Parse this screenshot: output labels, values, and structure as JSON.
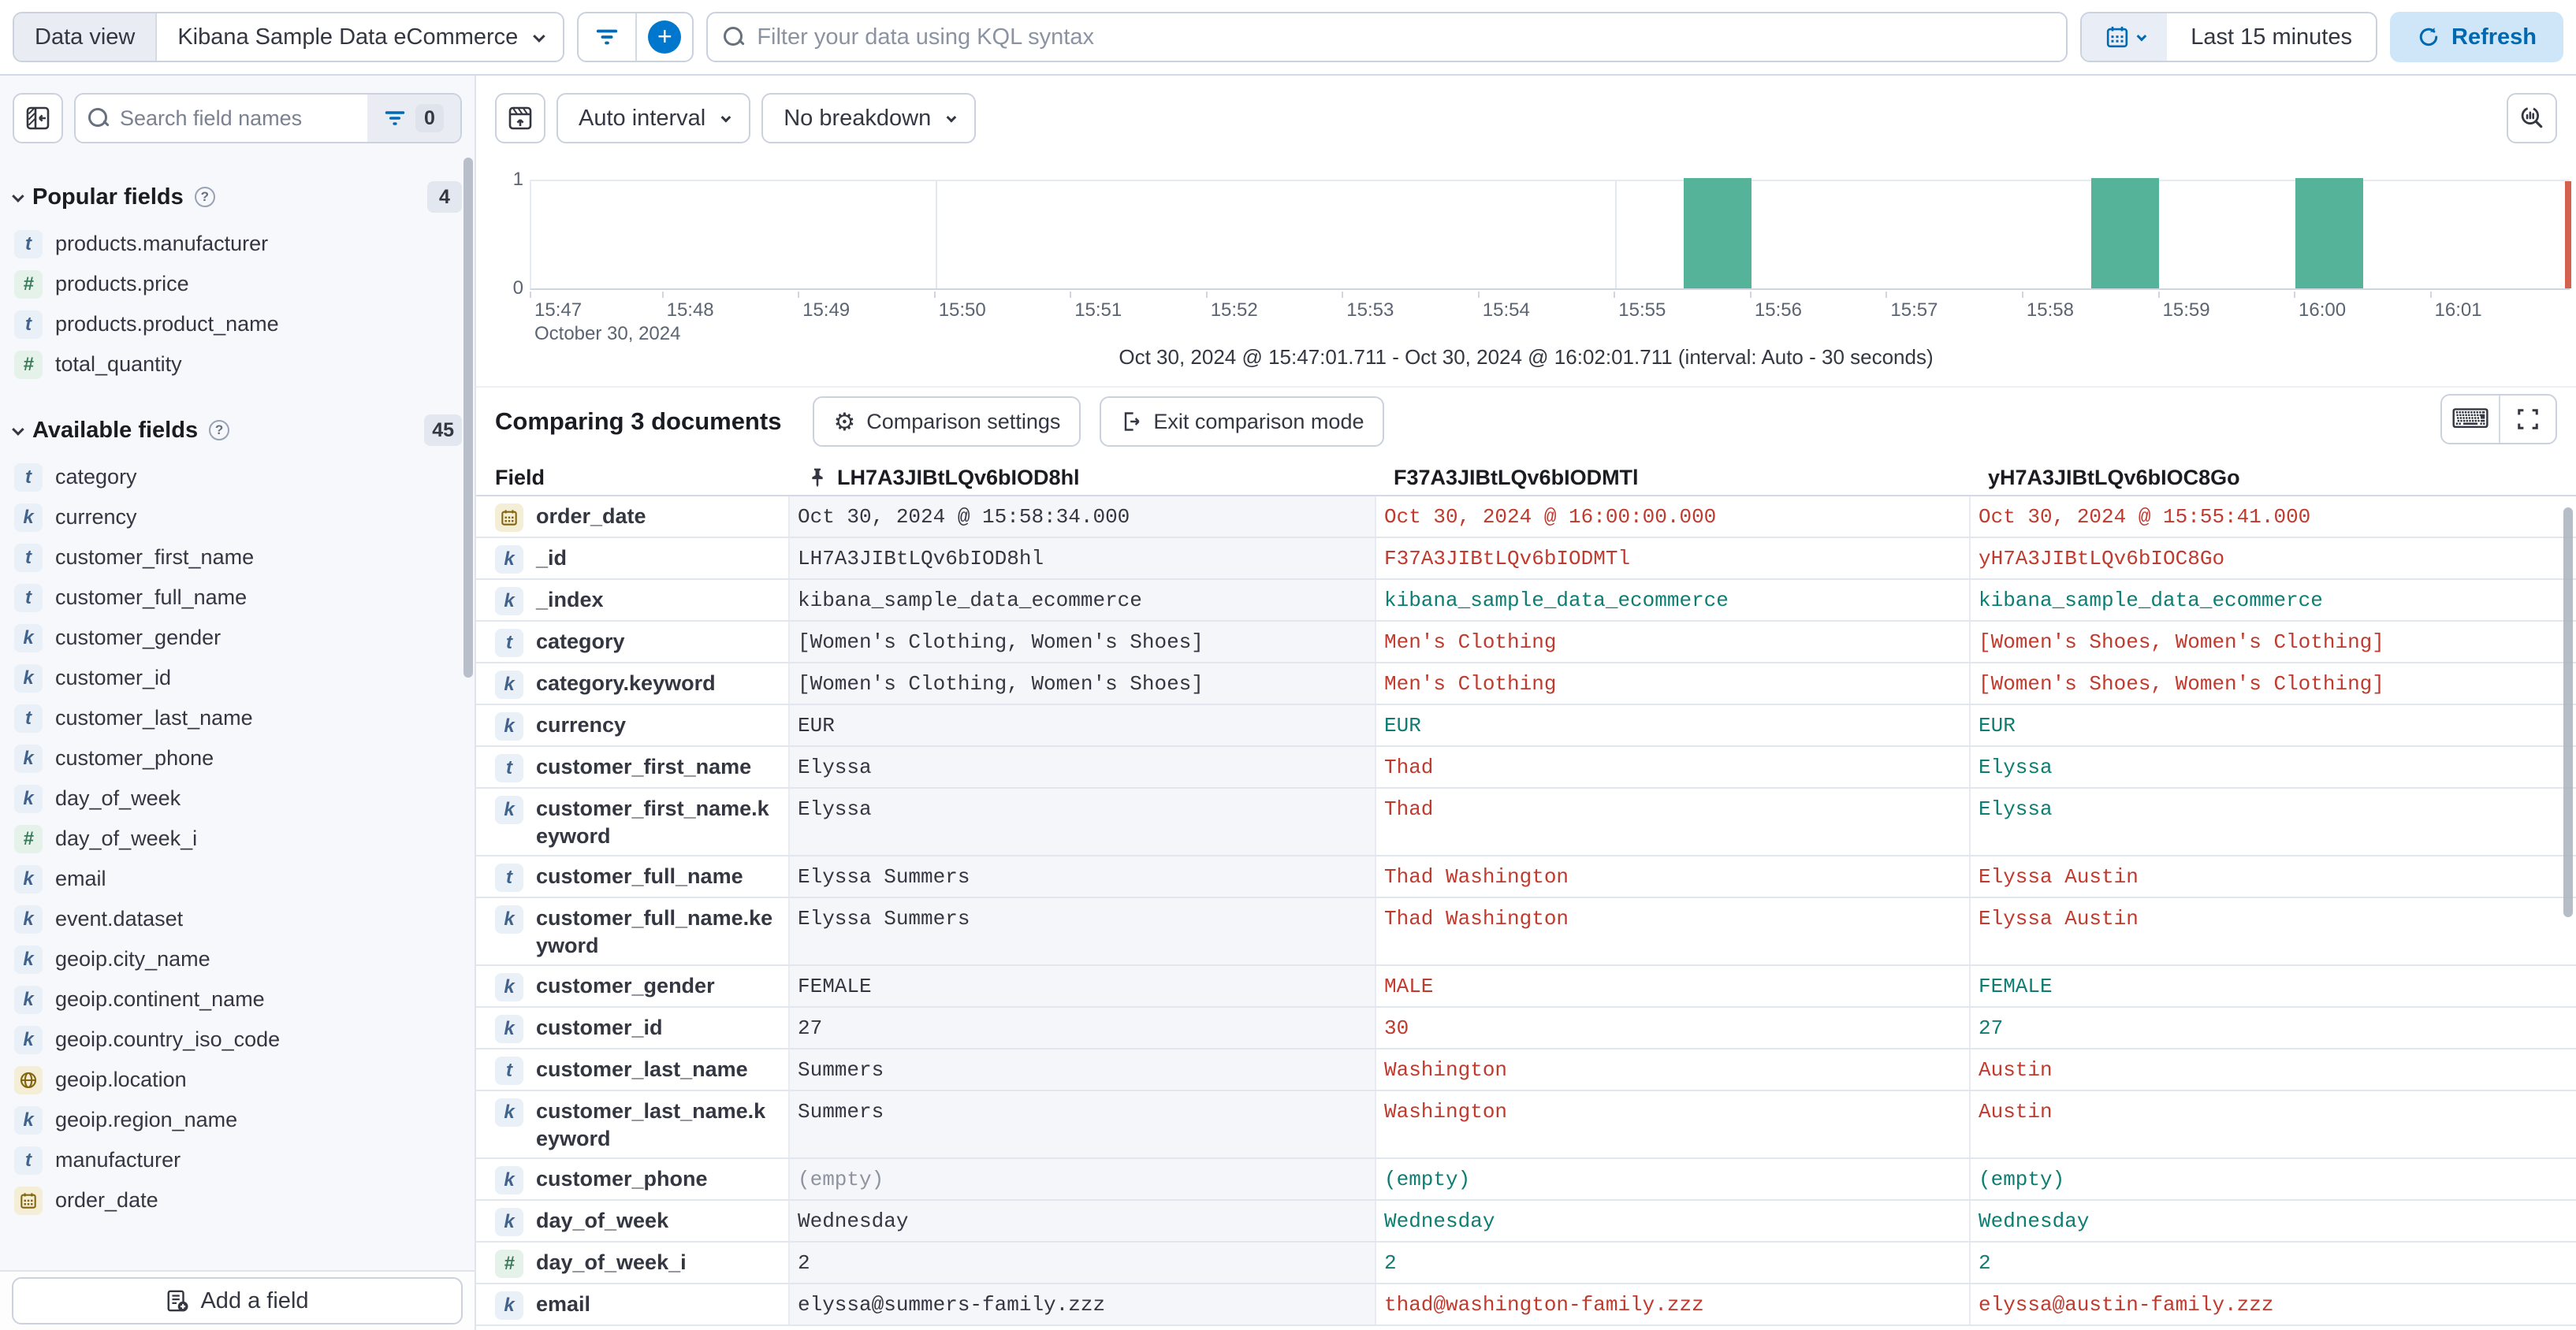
{
  "topbar": {
    "data_view_label": "Data view",
    "data_view_value": "Kibana Sample Data eCommerce",
    "kql_placeholder": "Filter your data using KQL syntax",
    "time_range": "Last 15 minutes",
    "refresh_label": "Refresh"
  },
  "sidebar": {
    "search_placeholder": "Search field names",
    "filter_count": "0",
    "popular": {
      "title": "Popular fields",
      "count": "4",
      "items": [
        {
          "name": "products.manufacturer",
          "type": "text"
        },
        {
          "name": "products.price",
          "type": "number"
        },
        {
          "name": "products.product_name",
          "type": "text"
        },
        {
          "name": "total_quantity",
          "type": "number"
        }
      ]
    },
    "available": {
      "title": "Available fields",
      "count": "45",
      "items": [
        {
          "name": "category",
          "type": "text"
        },
        {
          "name": "currency",
          "type": "keyword"
        },
        {
          "name": "customer_first_name",
          "type": "text"
        },
        {
          "name": "customer_full_name",
          "type": "text"
        },
        {
          "name": "customer_gender",
          "type": "keyword"
        },
        {
          "name": "customer_id",
          "type": "keyword"
        },
        {
          "name": "customer_last_name",
          "type": "text"
        },
        {
          "name": "customer_phone",
          "type": "keyword"
        },
        {
          "name": "day_of_week",
          "type": "keyword"
        },
        {
          "name": "day_of_week_i",
          "type": "number"
        },
        {
          "name": "email",
          "type": "keyword"
        },
        {
          "name": "event.dataset",
          "type": "keyword"
        },
        {
          "name": "geoip.city_name",
          "type": "keyword"
        },
        {
          "name": "geoip.continent_name",
          "type": "keyword"
        },
        {
          "name": "geoip.country_iso_code",
          "type": "keyword"
        },
        {
          "name": "geoip.location",
          "type": "geo"
        },
        {
          "name": "geoip.region_name",
          "type": "keyword"
        },
        {
          "name": "manufacturer",
          "type": "text"
        },
        {
          "name": "order_date",
          "type": "date"
        }
      ]
    },
    "add_field_label": "Add a field"
  },
  "chart": {
    "interval_label": "Auto interval",
    "breakdown_label": "No breakdown",
    "date_label": "October 30, 2024",
    "caption": "Oct 30, 2024 @ 15:47:01.711 - Oct 30, 2024 @ 16:02:01.711 (interval: Auto - 30 seconds)"
  },
  "chart_data": {
    "type": "bar",
    "title": "Histogram of documents over time",
    "x_start": "15:47:01.711",
    "x_end": "16:02:01.711",
    "interval_seconds": 30,
    "ylim": [
      0,
      1
    ],
    "y_tick_labels": [
      "1",
      "0"
    ],
    "x_tick_labels": [
      "15:47",
      "15:48",
      "15:49",
      "15:50",
      "15:51",
      "15:52",
      "15:53",
      "15:54",
      "15:55",
      "15:56",
      "15:57",
      "15:58",
      "15:59",
      "16:00",
      "16:01"
    ],
    "gridlines": [
      "15:50",
      "15:55",
      "16:00"
    ],
    "bars": [
      {
        "start": "15:55:30",
        "value": 1
      },
      {
        "start": "15:58:30",
        "value": 1
      },
      {
        "start": "16:00:00",
        "value": 1
      }
    ],
    "bar_color": "#54b399",
    "now_marker": "16:02:00",
    "now_marker_color": "#d4604f"
  },
  "comparison": {
    "title": "Comparing 3 documents",
    "settings_label": "Comparison settings",
    "exit_label": "Exit comparison mode",
    "table": {
      "field_header": "Field",
      "doc_headers": [
        {
          "id": "LH7A3JIBtLQv6bIOD8hl",
          "pinned": true
        },
        {
          "id": "F37A3JIBtLQv6bIODMTl",
          "pinned": false
        },
        {
          "id": "yH7A3JIBtLQv6bIOC8Go",
          "pinned": false
        }
      ],
      "rows": [
        {
          "field": "order_date",
          "type": "date",
          "values": [
            {
              "text": "Oct 30, 2024 @ 15:58:34.000",
              "tone": "default"
            },
            {
              "text": "Oct 30, 2024 @ 16:00:00.000",
              "tone": "diff"
            },
            {
              "text": "Oct 30, 2024 @ 15:55:41.000",
              "tone": "diff"
            }
          ]
        },
        {
          "field": "_id",
          "type": "keyword",
          "values": [
            {
              "text": "LH7A3JIBtLQv6bIOD8hl",
              "tone": "default"
            },
            {
              "text": "F37A3JIBtLQv6bIODMTl",
              "tone": "diff"
            },
            {
              "text": "yH7A3JIBtLQv6bIOC8Go",
              "tone": "diff"
            }
          ]
        },
        {
          "field": "_index",
          "type": "keyword",
          "values": [
            {
              "text": "kibana_sample_data_ecommerce",
              "tone": "default"
            },
            {
              "text": "kibana_sample_data_ecommerce",
              "tone": "match"
            },
            {
              "text": "kibana_sample_data_ecommerce",
              "tone": "match"
            }
          ]
        },
        {
          "field": "category",
          "type": "text",
          "values": [
            {
              "text": "[Women's Clothing, Women's Shoes]",
              "tone": "default"
            },
            {
              "text": "Men's Clothing",
              "tone": "diff"
            },
            {
              "text": "[Women's Shoes, Women's Clothing]",
              "tone": "diff"
            }
          ]
        },
        {
          "field": "category.keyword",
          "type": "keyword",
          "values": [
            {
              "text": "[Women's Clothing, Women's Shoes]",
              "tone": "default"
            },
            {
              "text": "Men's Clothing",
              "tone": "diff"
            },
            {
              "text": "[Women's Shoes, Women's Clothing]",
              "tone": "diff"
            }
          ]
        },
        {
          "field": "currency",
          "type": "keyword",
          "values": [
            {
              "text": "EUR",
              "tone": "default"
            },
            {
              "text": "EUR",
              "tone": "match"
            },
            {
              "text": "EUR",
              "tone": "match"
            }
          ]
        },
        {
          "field": "customer_first_name",
          "type": "text",
          "values": [
            {
              "text": "Elyssa",
              "tone": "default"
            },
            {
              "text": "Thad",
              "tone": "diff"
            },
            {
              "text": "Elyssa",
              "tone": "match"
            }
          ]
        },
        {
          "field": "customer_first_name.keyword",
          "type": "keyword",
          "values": [
            {
              "text": "Elyssa",
              "tone": "default"
            },
            {
              "text": "Thad",
              "tone": "diff"
            },
            {
              "text": "Elyssa",
              "tone": "match"
            }
          ]
        },
        {
          "field": "customer_full_name",
          "type": "text",
          "values": [
            {
              "text": "Elyssa Summers",
              "tone": "default"
            },
            {
              "text": "Thad Washington",
              "tone": "diff"
            },
            {
              "text": "Elyssa Austin",
              "tone": "diff"
            }
          ]
        },
        {
          "field": "customer_full_name.keyword",
          "type": "keyword",
          "values": [
            {
              "text": "Elyssa Summers",
              "tone": "default"
            },
            {
              "text": "Thad Washington",
              "tone": "diff"
            },
            {
              "text": "Elyssa Austin",
              "tone": "diff"
            }
          ]
        },
        {
          "field": "customer_gender",
          "type": "keyword",
          "values": [
            {
              "text": "FEMALE",
              "tone": "default"
            },
            {
              "text": "MALE",
              "tone": "diff"
            },
            {
              "text": "FEMALE",
              "tone": "match"
            }
          ]
        },
        {
          "field": "customer_id",
          "type": "keyword",
          "values": [
            {
              "text": "27",
              "tone": "default"
            },
            {
              "text": "30",
              "tone": "diff"
            },
            {
              "text": "27",
              "tone": "match"
            }
          ]
        },
        {
          "field": "customer_last_name",
          "type": "text",
          "values": [
            {
              "text": "Summers",
              "tone": "default"
            },
            {
              "text": "Washington",
              "tone": "diff"
            },
            {
              "text": "Austin",
              "tone": "diff"
            }
          ]
        },
        {
          "field": "customer_last_name.keyword",
          "type": "keyword",
          "values": [
            {
              "text": "Summers",
              "tone": "default"
            },
            {
              "text": "Washington",
              "tone": "diff"
            },
            {
              "text": "Austin",
              "tone": "diff"
            }
          ]
        },
        {
          "field": "customer_phone",
          "type": "keyword",
          "values": [
            {
              "text": "(empty)",
              "tone": "empty"
            },
            {
              "text": "(empty)",
              "tone": "match"
            },
            {
              "text": "(empty)",
              "tone": "match"
            }
          ]
        },
        {
          "field": "day_of_week",
          "type": "keyword",
          "values": [
            {
              "text": "Wednesday",
              "tone": "default"
            },
            {
              "text": "Wednesday",
              "tone": "match"
            },
            {
              "text": "Wednesday",
              "tone": "match"
            }
          ]
        },
        {
          "field": "day_of_week_i",
          "type": "number",
          "values": [
            {
              "text": "2",
              "tone": "default"
            },
            {
              "text": "2",
              "tone": "match"
            },
            {
              "text": "2",
              "tone": "match"
            }
          ]
        },
        {
          "field": "email",
          "type": "keyword",
          "values": [
            {
              "text": "elyssa@summers-family.zzz",
              "tone": "default"
            },
            {
              "text": "thad@washington-family.zzz",
              "tone": "diff"
            },
            {
              "text": "elyssa@austin-family.zzz",
              "tone": "diff"
            }
          ]
        }
      ]
    }
  },
  "colors": {
    "accent": "#0077cc",
    "bar": "#54b399",
    "diff_text": "#c03a2e",
    "match_text": "#0d7e71",
    "now_marker": "#d4604f"
  }
}
